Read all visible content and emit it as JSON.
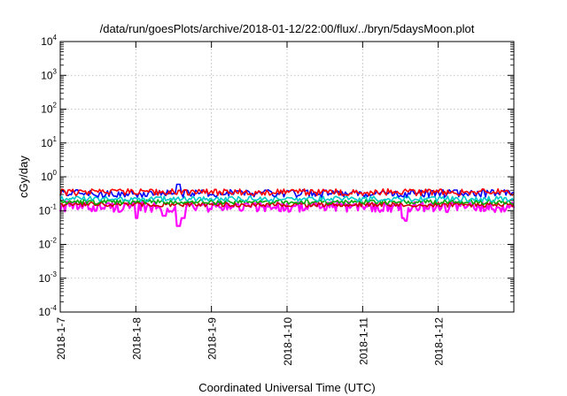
{
  "chart_data": {
    "type": "line",
    "title": "/data/run/goesPlots/archive/2018-01-12/22:00/flux/../bryn/5daysMoon.plot",
    "xlabel": "Coordinated Universal Time (UTC)",
    "ylabel": "cGy/day",
    "yscale": "log",
    "ylim": [
      0.0001,
      10000
    ],
    "xlim": [
      "2018-01-07",
      "2018-01-13"
    ],
    "x_ticks": [
      "2018-1-7",
      "2018-1-8",
      "2018-1-9",
      "2018-1-10",
      "2018-1-11",
      "2018-1-12"
    ],
    "y_ticks": [
      {
        "base": "10",
        "exp": "-4"
      },
      {
        "base": "10",
        "exp": "-3"
      },
      {
        "base": "10",
        "exp": "-2"
      },
      {
        "base": "10",
        "exp": "-1"
      },
      {
        "base": "10",
        "exp": "0"
      },
      {
        "base": "10",
        "exp": "1"
      },
      {
        "base": "10",
        "exp": "2"
      },
      {
        "base": "10",
        "exp": "3"
      },
      {
        "base": "10",
        "exp": "4"
      }
    ],
    "grid": true,
    "legend": "none",
    "series": [
      {
        "color": "#ff00ff",
        "baseline": 0.13,
        "noise": 0.35,
        "dips": [
          {
            "x": "2018-01-08T00:20",
            "value": 0.06
          },
          {
            "x": "2018-01-08T09:00",
            "value": 0.07
          },
          {
            "x": "2018-01-08T13:30",
            "value": 0.035
          },
          {
            "x": "2018-01-08T15:00",
            "value": 0.06
          },
          {
            "x": "2018-01-11T13:00",
            "value": 0.06
          },
          {
            "x": "2018-01-11T13:40",
            "value": 0.05
          }
        ]
      },
      {
        "color": "#cc0000",
        "baseline": 0.15,
        "noise": 0.15,
        "dips": []
      },
      {
        "color": "#00aa00",
        "baseline": 0.18,
        "noise": 0.15,
        "dips": []
      },
      {
        "color": "#00cccc",
        "baseline": 0.22,
        "noise": 0.18,
        "dips": []
      },
      {
        "color": "#0000ff",
        "baseline": 0.32,
        "noise": 0.25,
        "dips": [
          {
            "x": "2018-01-08T13:30",
            "value": 0.6
          }
        ]
      },
      {
        "color": "#ff0000",
        "baseline": 0.35,
        "noise": 0.22,
        "dips": []
      }
    ]
  }
}
